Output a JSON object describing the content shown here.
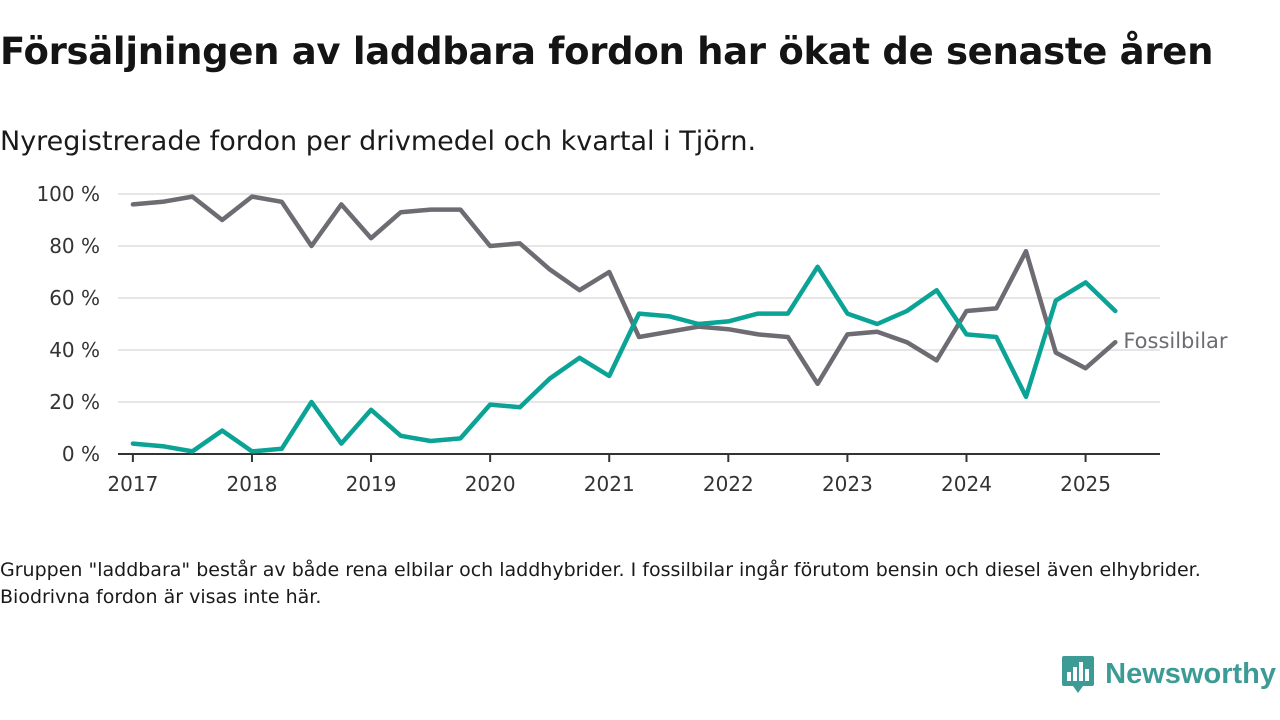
{
  "header": {
    "title": "Försäljningen av laddbara fordon har ökat de senaste åren",
    "subtitle": "Nyregistrerade fordon per drivmedel och kvartal i Tjörn."
  },
  "note": "Gruppen \"laddbara\" består av både rena elbilar och laddhybrider. I fossilbilar ingår förutom bensin och diesel även elhybrider. Biodrivna fordon är visas inte här.",
  "brand": {
    "name": "Newsworthy",
    "logo_icon": "bar-chart-pin-icon",
    "color": "#3c9b95"
  },
  "chart_data": {
    "type": "line",
    "ylim": [
      0,
      100
    ],
    "yticks": [
      "0 %",
      "20 %",
      "40 %",
      "60 %",
      "80 %",
      "100 %"
    ],
    "ytick_values": [
      0,
      20,
      40,
      60,
      80,
      100
    ],
    "xlim": [
      2016.875,
      2025.625
    ],
    "xticks": [
      "2017",
      "2018",
      "2019",
      "2020",
      "2021",
      "2022",
      "2023",
      "2024",
      "2025"
    ],
    "xtick_values": [
      2017,
      2018,
      2019,
      2020,
      2021,
      2022,
      2023,
      2024,
      2025
    ],
    "grid": true,
    "x": [
      "2017 Q1",
      "2017 Q2",
      "2017 Q3",
      "2017 Q4",
      "2018 Q1",
      "2018 Q2",
      "2018 Q3",
      "2018 Q4",
      "2019 Q1",
      "2019 Q2",
      "2019 Q3",
      "2019 Q4",
      "2020 Q1",
      "2020 Q2",
      "2020 Q3",
      "2020 Q4",
      "2021 Q1",
      "2021 Q2",
      "2021 Q3",
      "2021 Q4",
      "2022 Q1",
      "2022 Q2",
      "2022 Q3",
      "2022 Q4",
      "2023 Q1",
      "2023 Q2",
      "2023 Q3",
      "2023 Q4",
      "2024 Q1",
      "2024 Q2",
      "2024 Q3",
      "2024 Q4",
      "2025 Q1",
      "2025 Q2"
    ],
    "series": [
      {
        "name": "Fossilbilar",
        "color": "#6e6b73",
        "values": [
          96,
          97,
          99,
          90,
          99,
          97,
          80,
          96,
          83,
          93,
          94,
          94,
          80,
          81,
          71,
          63,
          70,
          45,
          47,
          49,
          48,
          46,
          45,
          27,
          46,
          47,
          43,
          36,
          55,
          56,
          78,
          39,
          33,
          43
        ]
      },
      {
        "name": "",
        "color": "#0aa395",
        "values": [
          4,
          3,
          1,
          9,
          1,
          2,
          20,
          4,
          17,
          7,
          5,
          6,
          19,
          18,
          29,
          37,
          30,
          54,
          53,
          50,
          51,
          54,
          54,
          72,
          54,
          50,
          55,
          63,
          46,
          45,
          22,
          59,
          66,
          55
        ]
      }
    ]
  }
}
